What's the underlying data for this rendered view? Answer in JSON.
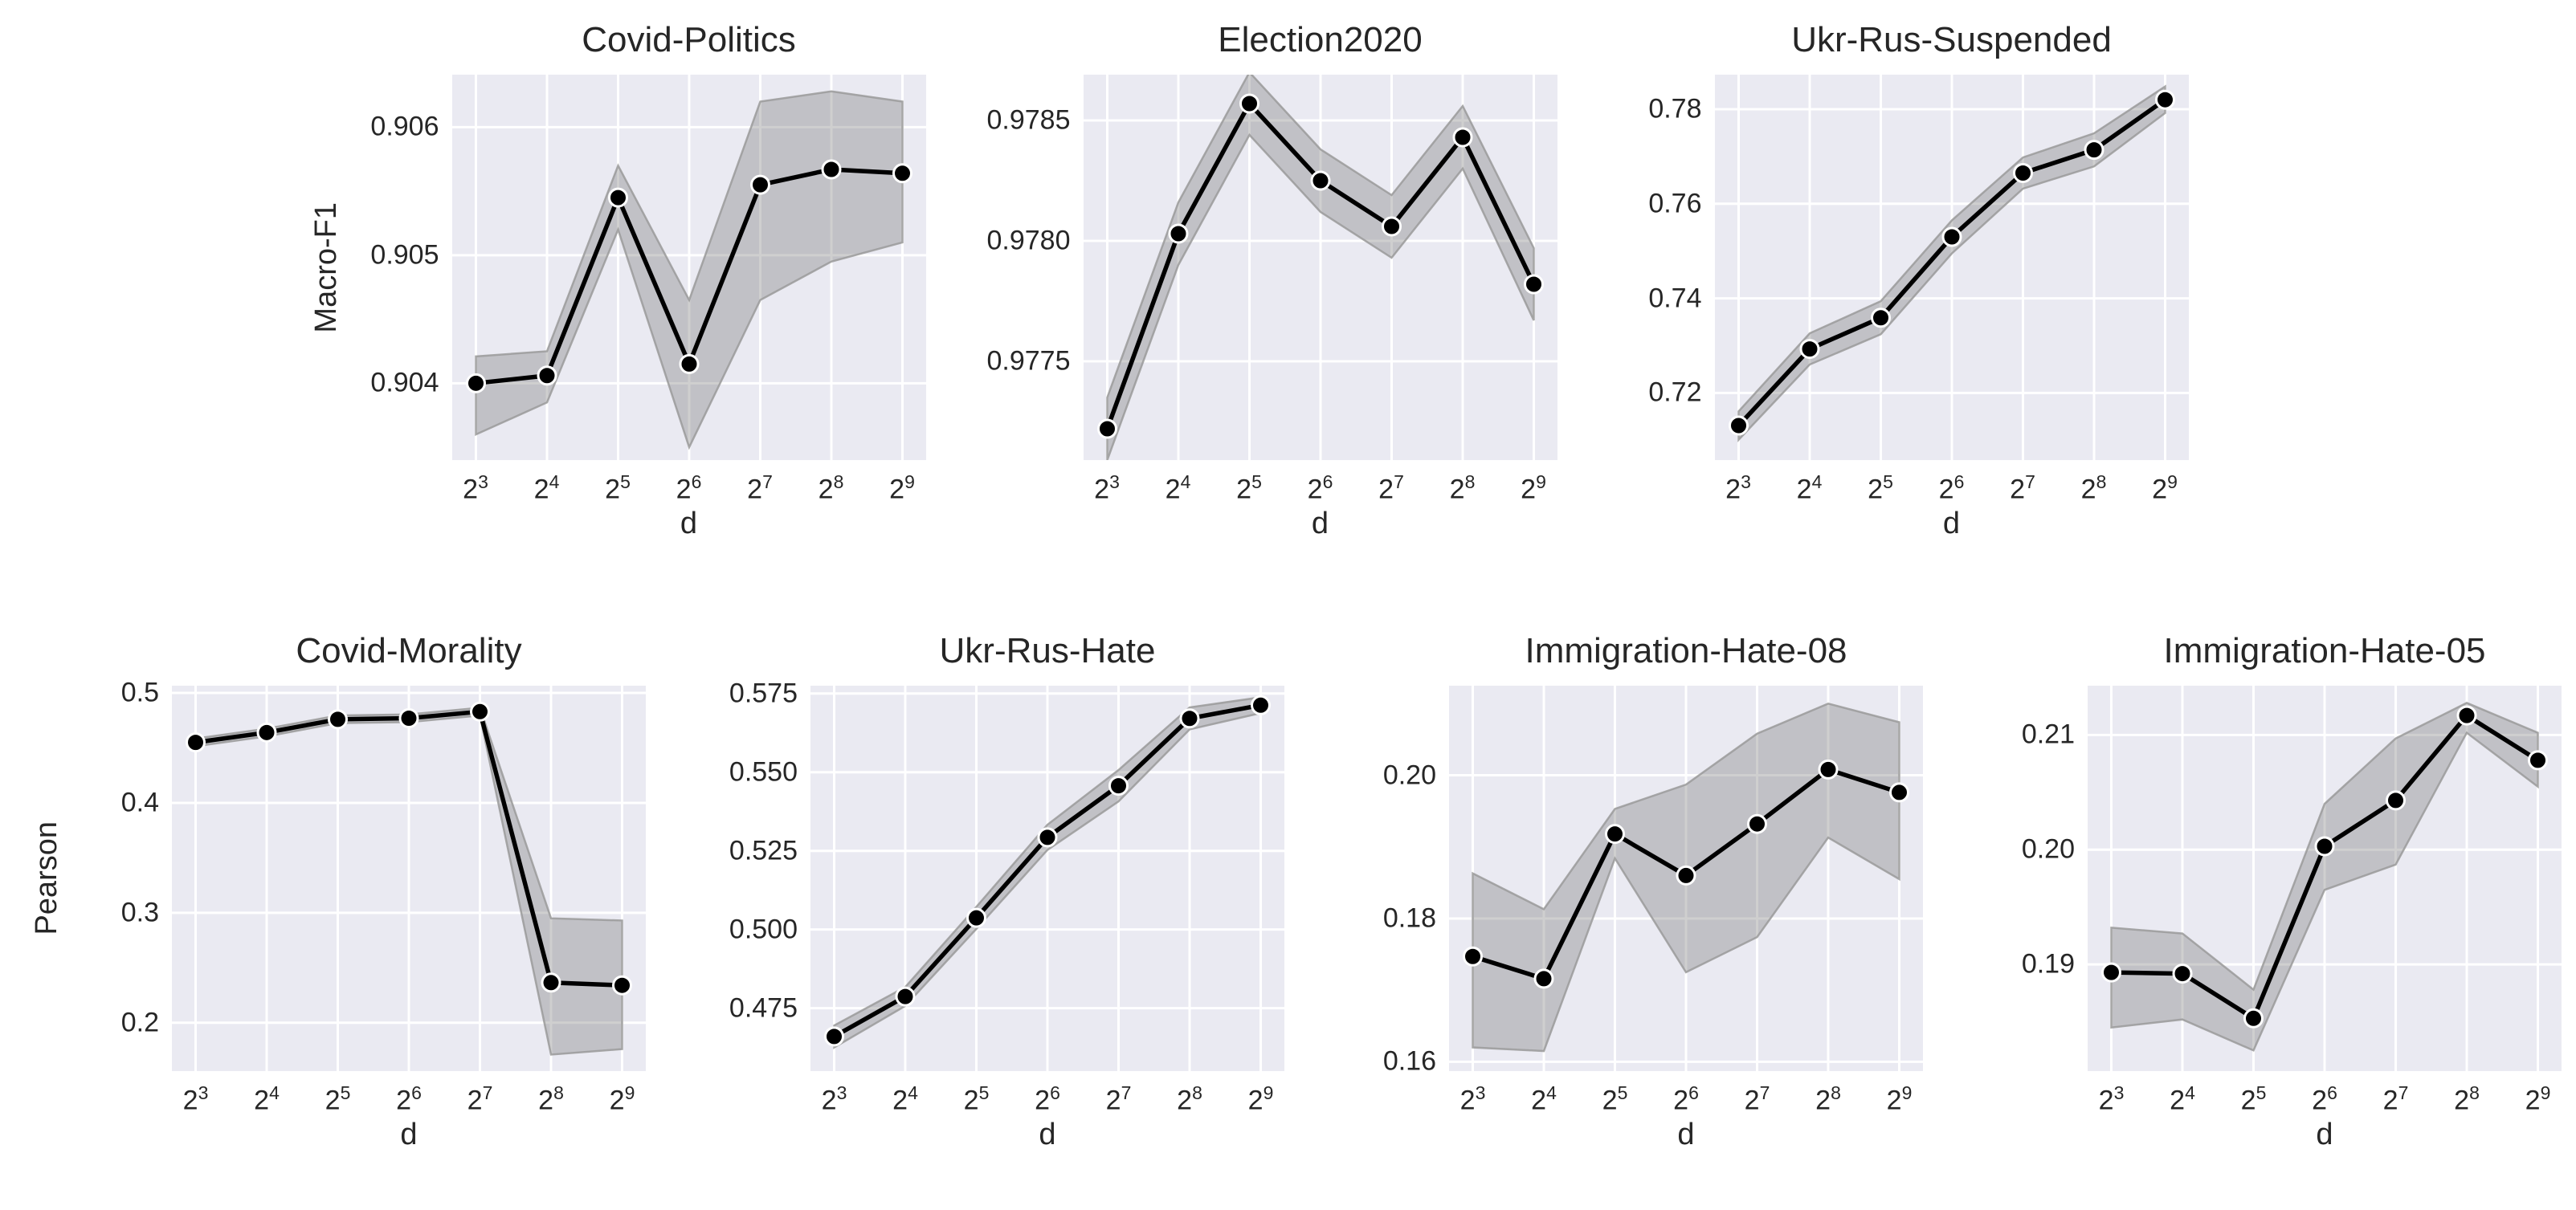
{
  "figure": {
    "x_axis_label": "d",
    "row1_y_axis_label": "Macro-F1",
    "row2_y_axis_label": "Pearson"
  },
  "colors": {
    "figure_bg": "#ffffff",
    "plot_bg": "#eaeaf2",
    "grid": "#ffffff",
    "line": "#000000",
    "marker_fill": "#000000",
    "marker_edge": "#ffffff",
    "band_fill": "#6e6e6e",
    "band_edge": "#9a9a9a",
    "text": "#262626"
  },
  "chart_data": [
    {
      "type": "line",
      "title": "Covid-Politics",
      "xlabel": "d",
      "ylabel": "Macro-F1",
      "x_base": 2,
      "x_exponents": [
        3,
        4,
        5,
        6,
        7,
        8,
        9
      ],
      "values": [
        0.904,
        0.90406,
        0.90545,
        0.90415,
        0.90555,
        0.90567,
        0.90564
      ],
      "band_lower": [
        0.9036,
        0.90385,
        0.9052,
        0.9035,
        0.90465,
        0.90495,
        0.9051
      ],
      "band_upper": [
        0.90421,
        0.90425,
        0.9057,
        0.90465,
        0.9062,
        0.90628,
        0.9062
      ],
      "ylim": [
        0.9034,
        0.90641
      ],
      "yticks": [
        0.904,
        0.905,
        0.906
      ],
      "ytick_labels": [
        "0.904",
        "0.905",
        "0.906"
      ],
      "grid": true,
      "legend": false
    },
    {
      "type": "line",
      "title": "Election2020",
      "xlabel": "d",
      "ylabel": "",
      "x_base": 2,
      "x_exponents": [
        3,
        4,
        5,
        6,
        7,
        8,
        9
      ],
      "values": [
        0.97722,
        0.97803,
        0.97857,
        0.97825,
        0.97806,
        0.97843,
        0.97782
      ],
      "band_lower": [
        0.97709,
        0.9779,
        0.97844,
        0.97812,
        0.97793,
        0.9783,
        0.97767
      ],
      "band_upper": [
        0.97735,
        0.97816,
        0.9787,
        0.97838,
        0.97819,
        0.97856,
        0.97797
      ],
      "ylim": [
        0.97709,
        0.97869
      ],
      "yticks": [
        0.9775,
        0.978,
        0.9785
      ],
      "ytick_labels": [
        "0.9775",
        "0.9780",
        "0.9785"
      ],
      "grid": true,
      "legend": false
    },
    {
      "type": "line",
      "title": "Ukr-Rus-Suspended",
      "xlabel": "d",
      "ylabel": "",
      "x_base": 2,
      "x_exponents": [
        3,
        4,
        5,
        6,
        7,
        8,
        9
      ],
      "values": [
        0.7131,
        0.7293,
        0.7359,
        0.753,
        0.7665,
        0.7714,
        0.782
      ],
      "band_lower": [
        0.7101,
        0.726,
        0.7324,
        0.7495,
        0.7632,
        0.7679,
        0.7792
      ],
      "band_upper": [
        0.7161,
        0.7326,
        0.7394,
        0.7565,
        0.7698,
        0.7749,
        0.7848
      ],
      "ylim": [
        0.7058,
        0.7873
      ],
      "yticks": [
        0.72,
        0.74,
        0.76,
        0.78
      ],
      "ytick_labels": [
        "0.72",
        "0.74",
        "0.76",
        "0.78"
      ],
      "grid": true,
      "legend": false
    },
    {
      "type": "line",
      "title": "Covid-Morality",
      "xlabel": "d",
      "ylabel": "Pearson",
      "x_base": 2,
      "x_exponents": [
        3,
        4,
        5,
        6,
        7,
        8,
        9
      ],
      "values": [
        0.455,
        0.464,
        0.476,
        0.477,
        0.483,
        0.2365,
        0.234
      ],
      "band_lower": [
        0.4515,
        0.4605,
        0.4725,
        0.4735,
        0.4795,
        0.171,
        0.176
      ],
      "band_upper": [
        0.4585,
        0.4675,
        0.4795,
        0.4805,
        0.4865,
        0.295,
        0.293
      ],
      "ylim": [
        0.156,
        0.5066
      ],
      "yticks": [
        0.2,
        0.3,
        0.4,
        0.5
      ],
      "ytick_labels": [
        "0.2",
        "0.3",
        "0.4",
        "0.5"
      ],
      "grid": true,
      "legend": false
    },
    {
      "type": "line",
      "title": "Ukr-Rus-Hate",
      "xlabel": "d",
      "ylabel": "",
      "x_base": 2,
      "x_exponents": [
        3,
        4,
        5,
        6,
        7,
        8,
        9
      ],
      "values": [
        0.466,
        0.4787,
        0.5037,
        0.5293,
        0.5457,
        0.5671,
        0.5713
      ],
      "band_lower": [
        0.4625,
        0.4757,
        0.5002,
        0.5253,
        0.5407,
        0.5636,
        0.5688
      ],
      "band_upper": [
        0.4695,
        0.4817,
        0.5072,
        0.5333,
        0.5507,
        0.5706,
        0.5738
      ],
      "ylim": [
        0.455,
        0.5775
      ],
      "yticks": [
        0.475,
        0.5,
        0.525,
        0.55,
        0.575
      ],
      "ytick_labels": [
        "0.475",
        "0.500",
        "0.525",
        "0.550",
        "0.575"
      ],
      "grid": true,
      "legend": false
    },
    {
      "type": "line",
      "title": "Immigration-Hate-08",
      "xlabel": "d",
      "ylabel": "",
      "x_base": 2,
      "x_exponents": [
        3,
        4,
        5,
        6,
        7,
        8,
        9
      ],
      "values": [
        0.1747,
        0.1716,
        0.1918,
        0.186,
        0.1932,
        0.2008,
        0.1976
      ],
      "band_lower": [
        0.162,
        0.1615,
        0.1884,
        0.1725,
        0.1774,
        0.1913,
        0.1855
      ],
      "band_upper": [
        0.1863,
        0.1813,
        0.1953,
        0.1987,
        0.2058,
        0.21,
        0.2074
      ],
      "ylim": [
        0.1587,
        0.2125
      ],
      "yticks": [
        0.16,
        0.18,
        0.2
      ],
      "ytick_labels": [
        "0.16",
        "0.18",
        "0.20"
      ],
      "grid": true,
      "legend": false
    },
    {
      "type": "line",
      "title": "Immigration-Hate-05",
      "xlabel": "d",
      "ylabel": "",
      "x_base": 2,
      "x_exponents": [
        3,
        4,
        5,
        6,
        7,
        8,
        9
      ],
      "values": [
        0.1893,
        0.1892,
        0.1853,
        0.2003,
        0.2043,
        0.2117,
        0.2078
      ],
      "band_lower": [
        0.1845,
        0.1852,
        0.1825,
        0.1965,
        0.1987,
        0.2102,
        0.2055
      ],
      "band_upper": [
        0.1932,
        0.1927,
        0.1878,
        0.204,
        0.2097,
        0.2128,
        0.2102
      ],
      "ylim": [
        0.1807,
        0.2143
      ],
      "yticks": [
        0.19,
        0.2,
        0.21
      ],
      "ytick_labels": [
        "0.19",
        "0.20",
        "0.21"
      ],
      "grid": true,
      "legend": false
    }
  ]
}
